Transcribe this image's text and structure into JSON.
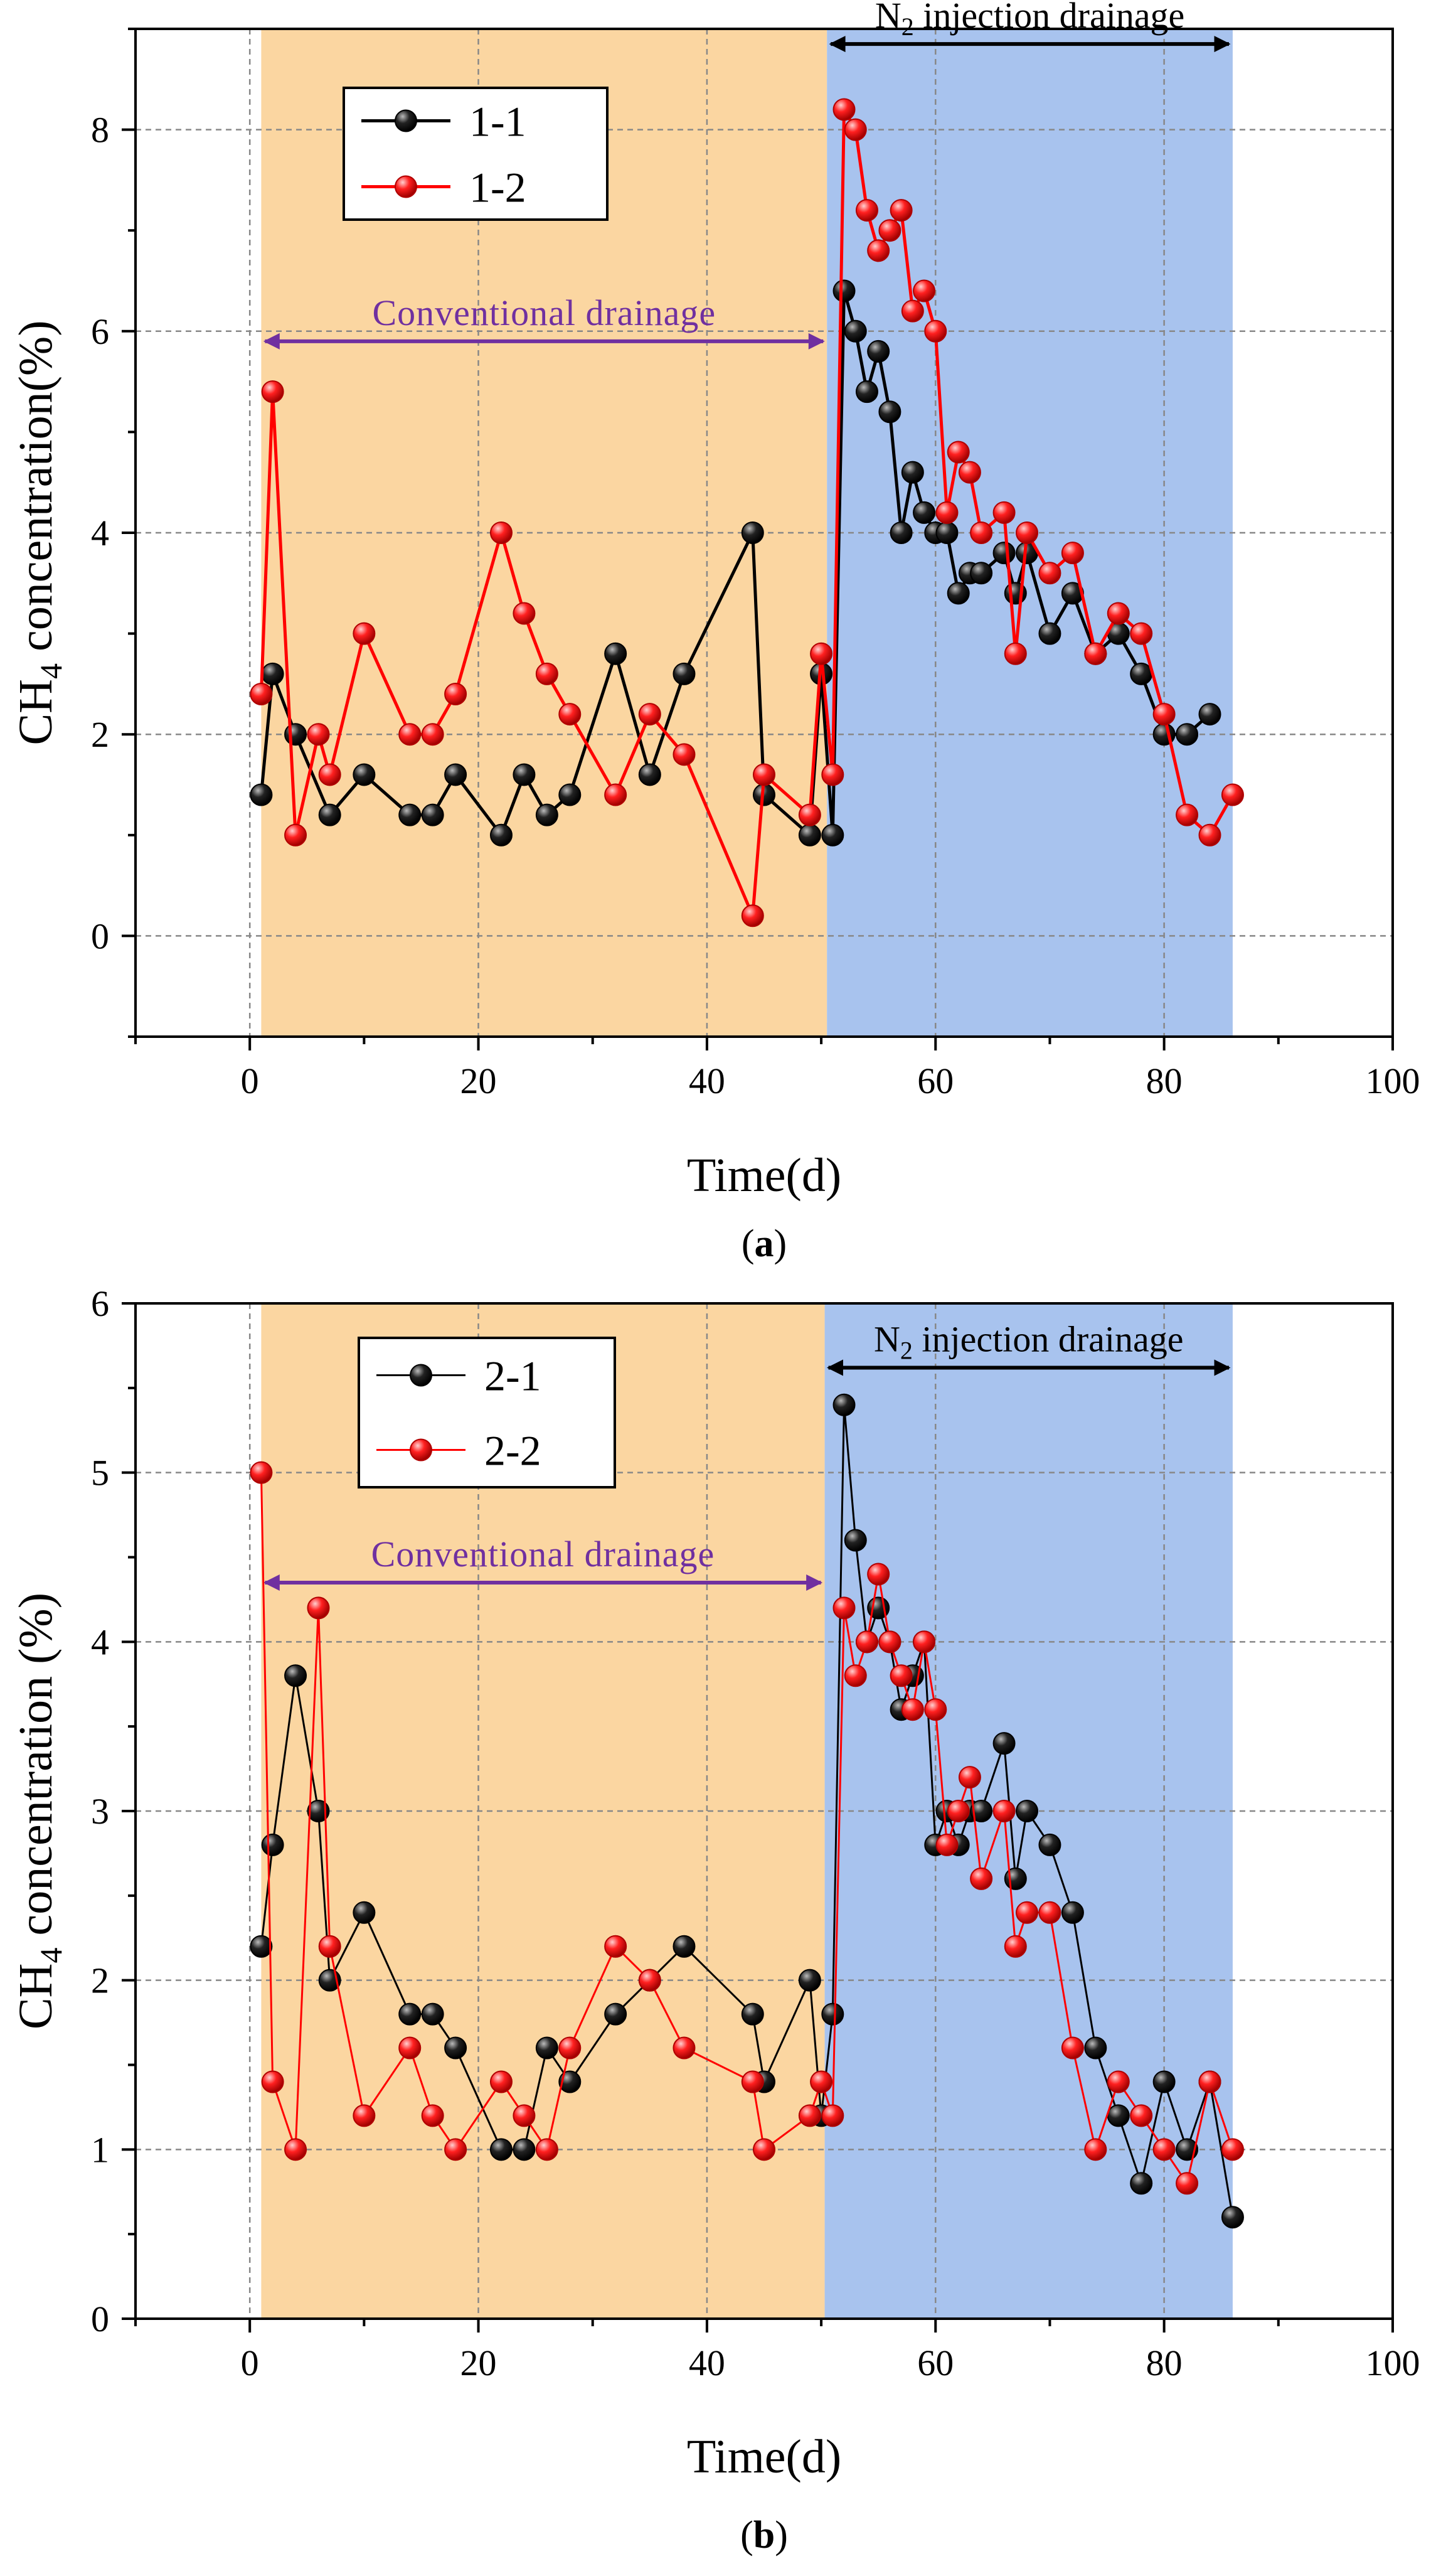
{
  "chart_data": [
    {
      "panel_label": "(a)",
      "type": "line",
      "xlabel": "Time(d)",
      "ylabel_base": "CH",
      "ylabel_sub": "4",
      "ylabel_rest": " concentration(%)",
      "xlim": [
        -10,
        100
      ],
      "ylim": [
        -1,
        9
      ],
      "xticks": [
        0,
        20,
        40,
        60,
        80,
        100
      ],
      "yticks": [
        0,
        2,
        4,
        6,
        8
      ],
      "grid": true,
      "legend_position": "top-left",
      "regions": [
        {
          "x0": 1,
          "x1": 50.5,
          "color": "#FBD6A1"
        },
        {
          "x0": 50.5,
          "x1": 86,
          "color": "#A8C3EE"
        }
      ],
      "annotations": [
        {
          "text": "Conventional drainage",
          "x0": 1,
          "x1": 50.5,
          "y": 5.9,
          "color": "#7030A0"
        },
        {
          "text_base": "N",
          "text_sub": "2",
          "text_rest": " injection drainage",
          "x0": 50.5,
          "x1": 86,
          "y": 8.85,
          "color": "#000000"
        }
      ],
      "series": [
        {
          "name": "1-1",
          "color": "#000000",
          "x": [
            1,
            2,
            4,
            7,
            10,
            14,
            16,
            18,
            22,
            24,
            26,
            28,
            32,
            35,
            38,
            44,
            45,
            49,
            50,
            51,
            52,
            53,
            54,
            55,
            56,
            57,
            58,
            59,
            60,
            61,
            62,
            63,
            64,
            66,
            67,
            68,
            70,
            72,
            74,
            76,
            78,
            80,
            82,
            84
          ],
          "y": [
            1.4,
            2.6,
            2.0,
            1.2,
            1.6,
            1.2,
            1.2,
            1.6,
            1.0,
            1.6,
            1.2,
            1.4,
            2.8,
            1.6,
            2.6,
            4.0,
            1.4,
            1.0,
            2.6,
            1.0,
            6.4,
            6.0,
            5.4,
            5.8,
            5.2,
            4.0,
            4.6,
            4.2,
            4.0,
            4.0,
            3.4,
            3.6,
            3.6,
            3.8,
            3.4,
            3.8,
            3.0,
            3.4,
            2.8,
            3.0,
            2.6,
            2.0,
            2.0,
            2.2
          ]
        },
        {
          "name": "1-2",
          "color": "#FF0000",
          "x": [
            1,
            2,
            4,
            6,
            7,
            10,
            14,
            16,
            18,
            22,
            24,
            26,
            28,
            32,
            35,
            38,
            44,
            45,
            49,
            50,
            51,
            52,
            53,
            54,
            55,
            56,
            57,
            58,
            59,
            60,
            61,
            62,
            63,
            64,
            66,
            67,
            68,
            70,
            72,
            74,
            76,
            78,
            80,
            82,
            84,
            86
          ],
          "y": [
            2.4,
            5.4,
            1.0,
            2.0,
            1.6,
            3.0,
            2.0,
            2.0,
            2.4,
            4.0,
            3.2,
            2.6,
            2.2,
            1.4,
            2.2,
            1.8,
            0.2,
            1.6,
            1.2,
            2.8,
            1.6,
            8.2,
            8.0,
            7.2,
            6.8,
            7.0,
            7.2,
            6.2,
            6.4,
            6.0,
            4.2,
            4.8,
            4.6,
            4.0,
            4.2,
            2.8,
            4.0,
            3.6,
            3.8,
            2.8,
            3.2,
            3.0,
            2.2,
            1.2,
            1.0,
            1.4
          ]
        }
      ]
    },
    {
      "panel_label": "(b)",
      "type": "line",
      "xlabel": "Time(d)",
      "ylabel_base": "CH",
      "ylabel_sub": "4",
      "ylabel_rest": " concentration (%)",
      "xlim": [
        -10,
        100
      ],
      "ylim": [
        0,
        6
      ],
      "xticks": [
        0,
        20,
        40,
        60,
        80,
        100
      ],
      "yticks": [
        0,
        1,
        2,
        3,
        4,
        5,
        6
      ],
      "grid": true,
      "legend_position": "top-left",
      "regions": [
        {
          "x0": 1,
          "x1": 50.3,
          "color": "#FBD6A1"
        },
        {
          "x0": 50.3,
          "x1": 86,
          "color": "#A8C3EE"
        }
      ],
      "annotations": [
        {
          "text": "Conventional drainage",
          "x0": 1,
          "x1": 50.3,
          "y": 4.35,
          "color": "#7030A0"
        },
        {
          "text_base": "N",
          "text_sub": "2",
          "text_rest": " injection drainage",
          "x0": 50.3,
          "x1": 86,
          "y": 5.62,
          "color": "#000000"
        }
      ],
      "series": [
        {
          "name": "2-1",
          "color": "#000000",
          "x": [
            1,
            2,
            4,
            6,
            7,
            10,
            14,
            16,
            18,
            22,
            24,
            26,
            28,
            32,
            35,
            38,
            44,
            45,
            49,
            50,
            51,
            52,
            53,
            54,
            55,
            56,
            57,
            58,
            59,
            60,
            61,
            62,
            63,
            64,
            66,
            67,
            68,
            70,
            72,
            74,
            76,
            78,
            80,
            82,
            84,
            86
          ],
          "y": [
            2.2,
            2.8,
            3.8,
            3.0,
            2.0,
            2.4,
            1.8,
            1.8,
            1.6,
            1.0,
            1.0,
            1.6,
            1.4,
            1.8,
            2.0,
            2.2,
            1.8,
            1.4,
            2.0,
            1.2,
            1.8,
            5.4,
            4.6,
            4.0,
            4.2,
            4.0,
            3.6,
            3.8,
            4.0,
            2.8,
            3.0,
            2.8,
            3.0,
            3.0,
            3.4,
            2.6,
            3.0,
            2.8,
            2.4,
            1.6,
            1.2,
            0.8,
            1.4,
            1.0,
            1.4,
            0.6
          ]
        },
        {
          "name": "2-2",
          "color": "#FF0000",
          "x": [
            1,
            2,
            4,
            6,
            7,
            10,
            14,
            16,
            18,
            22,
            24,
            26,
            28,
            32,
            35,
            38,
            44,
            45,
            49,
            50,
            51,
            52,
            53,
            54,
            55,
            56,
            57,
            58,
            59,
            60,
            61,
            62,
            63,
            64,
            66,
            67,
            68,
            70,
            72,
            74,
            76,
            78,
            80,
            82,
            84,
            86
          ],
          "y": [
            5.0,
            1.4,
            1.0,
            4.2,
            2.2,
            1.2,
            1.6,
            1.2,
            1.0,
            1.4,
            1.2,
            1.0,
            1.6,
            2.2,
            2.0,
            1.6,
            1.4,
            1.0,
            1.2,
            1.4,
            1.2,
            4.2,
            3.8,
            4.0,
            4.4,
            4.0,
            3.8,
            3.6,
            4.0,
            3.6,
            2.8,
            3.0,
            3.2,
            2.6,
            3.0,
            2.2,
            2.4,
            2.4,
            1.6,
            1.0,
            1.4,
            1.2,
            1.0,
            0.8,
            1.4,
            1.0
          ]
        }
      ]
    }
  ]
}
